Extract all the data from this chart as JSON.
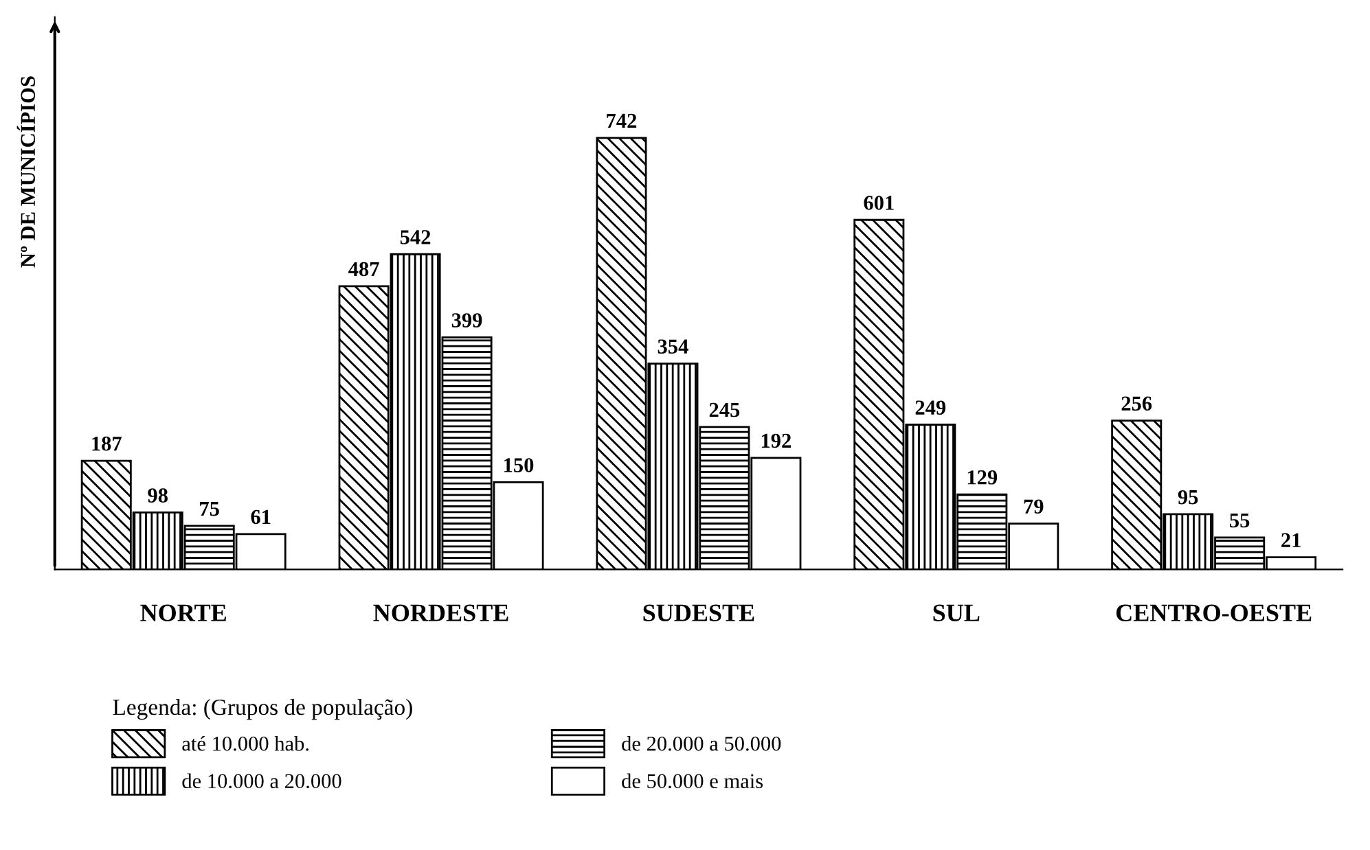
{
  "chart_data": {
    "type": "bar",
    "ylabel": "Nº DE MUNICÍPIOS",
    "legend_title": "Legenda: (Grupos de população)",
    "categories": [
      "NORTE",
      "NORDESTE",
      "SUDESTE",
      "SUL",
      "CENTRO-OESTE"
    ],
    "series": [
      {
        "name": "até 10.000 hab.",
        "color": "#000000",
        "values": [
          187,
          487,
          742,
          601,
          256
        ]
      },
      {
        "name": "de 10.000 a 20.000",
        "color": "#000000",
        "values": [
          98,
          542,
          354,
          249,
          95
        ]
      },
      {
        "name": "de 20.000 a 50.000",
        "color": "#000000",
        "values": [
          75,
          399,
          245,
          129,
          55
        ]
      },
      {
        "name": "de 50.000 e mais",
        "color": "#ffffff",
        "values": [
          61,
          150,
          192,
          79,
          21
        ]
      }
    ],
    "data_labels": true,
    "legend": "bottom",
    "grid": false
  }
}
